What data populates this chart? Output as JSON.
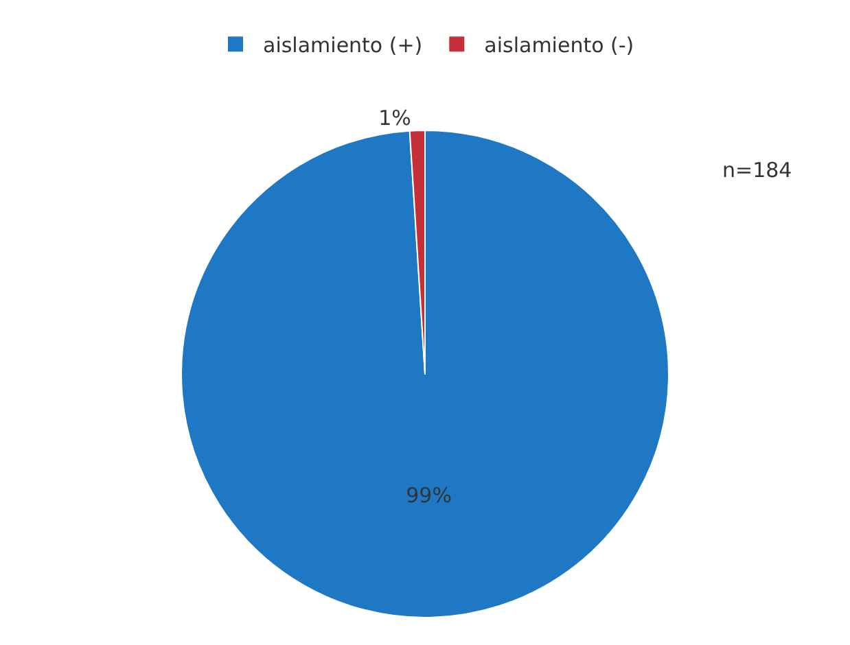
{
  "chart_data": {
    "type": "pie",
    "categories": [
      "aislamiento (+)",
      "aislamiento (-)"
    ],
    "values": [
      99,
      1
    ],
    "value_labels": [
      "99%",
      "1%"
    ],
    "colors": [
      "#1f78c4",
      "#c4303a"
    ],
    "legend": "top",
    "annotations": [
      "n=184"
    ]
  }
}
